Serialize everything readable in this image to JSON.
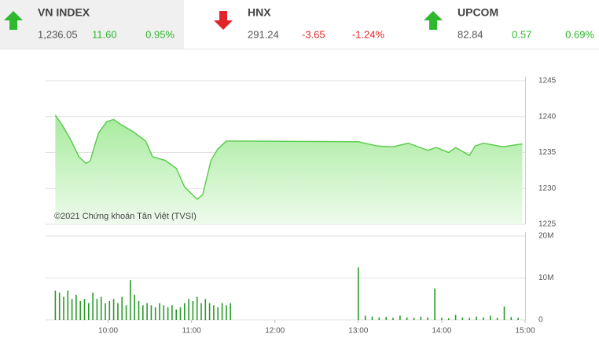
{
  "indices": [
    {
      "name": "VN INDEX",
      "value": "1,236.05",
      "change": "11.60",
      "pct": "0.95%",
      "direction": "up",
      "color": "#2db82d"
    },
    {
      "name": "HNX",
      "value": "291.24",
      "change": "-3.65",
      "pct": "-1.24%",
      "direction": "down",
      "color": "#e0262a"
    },
    {
      "name": "UPCOM",
      "value": "82.84",
      "change": "0.57",
      "pct": "0.69%",
      "direction": "up",
      "color": "#2db82d"
    }
  ],
  "chart_data": [
    {
      "type": "area",
      "annotation": "©2021 Chứng khoán Tân Việt (TVSI)",
      "color": "#5fcc52",
      "x": [
        562,
        567,
        573,
        579,
        584,
        587,
        593,
        599,
        604,
        610,
        618,
        627,
        632,
        641,
        649,
        655,
        664,
        668,
        674,
        679,
        685,
        690,
        780,
        794,
        805,
        816,
        830,
        836,
        845,
        850,
        860,
        864,
        870,
        884,
        898
      ],
      "values": [
        1240.2,
        1238.8,
        1236.8,
        1234.4,
        1233.5,
        1233.8,
        1237.7,
        1239.3,
        1239.6,
        1238.8,
        1237.9,
        1236.6,
        1234.4,
        1233.9,
        1232.8,
        1230.2,
        1228.5,
        1229.1,
        1233.9,
        1235.5,
        1236.6,
        1236.6,
        1236.5,
        1235.9,
        1235.8,
        1236.3,
        1235.3,
        1235.7,
        1235.0,
        1235.7,
        1234.6,
        1235.9,
        1236.3,
        1235.8,
        1236.2
      ],
      "xlim": [
        555,
        900
      ],
      "ylim": [
        1225,
        1245
      ],
      "yticks": [
        1225,
        1230,
        1235,
        1240,
        1245
      ],
      "grid": true
    },
    {
      "type": "bar",
      "color": "#2a9a2a",
      "x": [
        562,
        565,
        568,
        571,
        574,
        577,
        580,
        583,
        586,
        589,
        592,
        595,
        598,
        601,
        604,
        607,
        610,
        613,
        616,
        619,
        622,
        625,
        628,
        631,
        634,
        637,
        640,
        643,
        646,
        649,
        652,
        655,
        658,
        661,
        664,
        667,
        670,
        673,
        676,
        679,
        682,
        685,
        688,
        780,
        785,
        790,
        795,
        800,
        805,
        810,
        815,
        820,
        825,
        830,
        835,
        840,
        845,
        850,
        855,
        860,
        865,
        870,
        875,
        880,
        885,
        890,
        895
      ],
      "values": [
        7,
        6.5,
        5.5,
        7,
        5,
        6,
        4.5,
        5,
        4,
        6.5,
        5,
        5.5,
        4,
        4.5,
        5,
        4,
        5.5,
        3.5,
        9.5,
        6,
        4.5,
        3.5,
        4,
        3.5,
        3,
        4,
        3.5,
        3,
        3.5,
        2.5,
        3,
        4,
        5,
        4.5,
        5.5,
        4,
        5,
        4,
        3.5,
        3,
        4,
        3.5,
        4,
        12.5,
        1,
        0.8,
        0.6,
        0.7,
        0.5,
        1,
        0.6,
        0.5,
        0.8,
        0.6,
        7.5,
        0.5,
        0.4,
        1.2,
        0.6,
        0.5,
        0.8,
        0.6,
        1,
        0.5,
        3.2,
        0.7,
        0.5
      ],
      "xlim": [
        555,
        900
      ],
      "ylim": [
        0,
        20
      ],
      "yticks": [
        {
          "value": 0,
          "label": "0"
        },
        {
          "value": 10,
          "label": "10M"
        },
        {
          "value": 20,
          "label": "20M"
        }
      ],
      "xticks": [
        {
          "value": 600,
          "label": "10:00"
        },
        {
          "value": 660,
          "label": "11:00"
        },
        {
          "value": 720,
          "label": "12:00"
        },
        {
          "value": 780,
          "label": "13:00"
        },
        {
          "value": 840,
          "label": "14:00"
        },
        {
          "value": 900,
          "label": "15:00"
        }
      ],
      "grid": true
    }
  ]
}
